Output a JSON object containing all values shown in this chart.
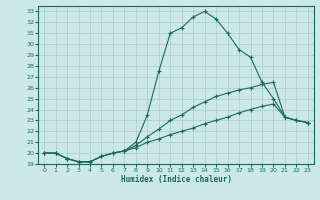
{
  "xlabel": "Humidex (Indice chaleur)",
  "background_color": "#cce8e8",
  "grid_color": "#a8cccc",
  "line_color": "#1a6b5a",
  "xlim": [
    -0.5,
    23.5
  ],
  "ylim": [
    19,
    33.5
  ],
  "ytick_vals": [
    19,
    20,
    21,
    22,
    23,
    24,
    25,
    26,
    27,
    28,
    29,
    30,
    31,
    32,
    33
  ],
  "xtick_vals": [
    0,
    1,
    2,
    3,
    4,
    5,
    6,
    7,
    8,
    9,
    10,
    11,
    12,
    13,
    14,
    15,
    16,
    17,
    18,
    19,
    20,
    21,
    22,
    23
  ],
  "lines": [
    {
      "x": [
        0,
        1,
        2,
        3,
        4,
        5,
        6,
        7,
        8,
        9,
        10,
        11,
        12,
        13,
        14,
        15,
        16,
        17,
        18,
        19,
        20,
        21,
        22,
        23
      ],
      "y": [
        20.0,
        20.0,
        19.5,
        19.2,
        19.2,
        19.7,
        20.0,
        20.2,
        21.0,
        23.5,
        27.5,
        31.0,
        31.5,
        32.5,
        33.0,
        32.3,
        31.0,
        29.5,
        28.8,
        26.5,
        25.0,
        23.3,
        23.0,
        22.8
      ]
    },
    {
      "x": [
        0,
        1,
        2,
        3,
        4,
        5,
        6,
        7,
        8,
        9,
        10,
        11,
        12,
        13,
        14,
        15,
        16,
        17,
        18,
        19,
        20,
        21,
        22,
        23
      ],
      "y": [
        20.0,
        20.0,
        19.5,
        19.2,
        19.2,
        19.7,
        20.0,
        20.2,
        20.7,
        21.5,
        22.2,
        23.0,
        23.5,
        24.2,
        24.7,
        25.2,
        25.5,
        25.8,
        26.0,
        26.3,
        26.5,
        23.3,
        23.0,
        22.8
      ]
    },
    {
      "x": [
        0,
        1,
        2,
        3,
        4,
        5,
        6,
        7,
        8,
        9,
        10,
        11,
        12,
        13,
        14,
        15,
        16,
        17,
        18,
        19,
        20,
        21,
        22,
        23
      ],
      "y": [
        20.0,
        20.0,
        19.5,
        19.2,
        19.2,
        19.7,
        20.0,
        20.2,
        20.5,
        21.0,
        21.3,
        21.7,
        22.0,
        22.3,
        22.7,
        23.0,
        23.3,
        23.7,
        24.0,
        24.3,
        24.5,
        23.3,
        23.0,
        22.8
      ]
    }
  ]
}
